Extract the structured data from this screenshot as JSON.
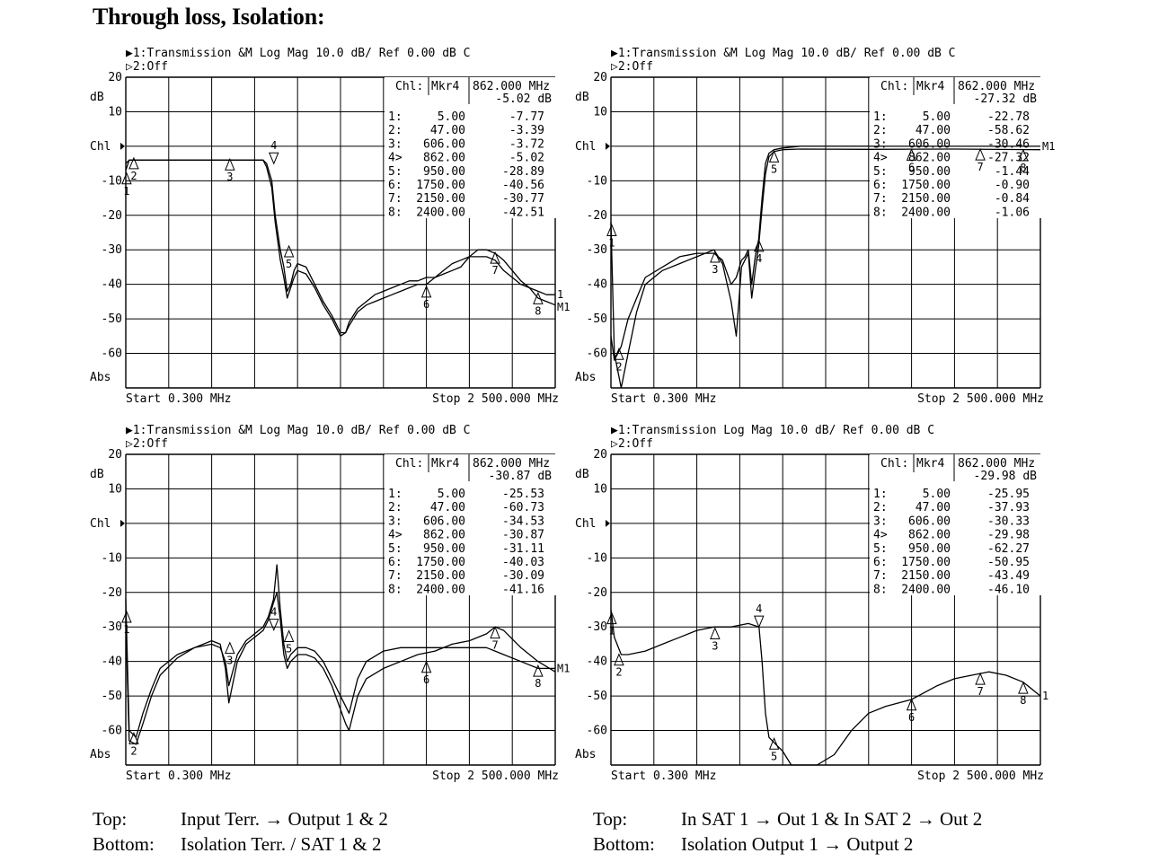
{
  "title": "Through loss, Isolation:",
  "captions": {
    "left": {
      "top_key": "Top:",
      "top_val": "Input Terr. → Output 1 & 2",
      "bottom_key": "Bottom:",
      "bottom_val": "Isolation Terr. / SAT 1 & 2"
    },
    "right": {
      "top_key": "Top:",
      "top_val": "In SAT 1 → Out 1 & In SAT 2 → Out 2",
      "bottom_key": "Bottom:",
      "bottom_val": "Isolation Output 1 → Output 2"
    }
  },
  "chart_data": [
    {
      "type": "line",
      "header_line1": "▶1:Transmission &M Log Mag 10.0 dB/ Ref 0.00 dB C",
      "header_line2": "▷2:Off",
      "ylabel": "dB",
      "abs_label": "Abs",
      "ch_label": "Chl",
      "yticks": [
        "20",
        "10",
        "",
        "-10",
        "-20",
        "-30",
        "-40",
        "-50",
        "-60"
      ],
      "ylim": [
        -70,
        20
      ],
      "xlim": [
        0.3,
        2500
      ],
      "start_label": "Start 0.300 MHz",
      "stop_label": "Stop 2 500.000 MHz",
      "marker_head": {
        "ch": "Chl:",
        "mkr": "Mkr4",
        "freq": "862.000 MHz",
        "val": "-5.02 dB"
      },
      "marker_table": [
        {
          "n": "1:",
          "f": "5.00",
          "v": "-7.77"
        },
        {
          "n": "2:",
          "f": "47.00",
          "v": "-3.39"
        },
        {
          "n": "3:",
          "f": "606.00",
          "v": "-3.72"
        },
        {
          "n": "4>",
          "f": "862.00",
          "v": "-5.02"
        },
        {
          "n": "5:",
          "f": "950.00",
          "v": "-28.89"
        },
        {
          "n": "6:",
          "f": "1750.00",
          "v": "-40.56"
        },
        {
          "n": "7:",
          "f": "2150.00",
          "v": "-30.77"
        },
        {
          "n": "8:",
          "f": "2400.00",
          "v": "-42.51"
        }
      ],
      "end_labels": [
        "1",
        "M1"
      ],
      "series": [
        {
          "x": [
            0.3,
            20,
            100,
            300,
            500,
            700,
            800,
            820,
            850,
            870,
            900,
            920,
            940,
            960,
            980,
            1000,
            1050,
            1100,
            1150,
            1200,
            1250,
            1280,
            1300,
            1350,
            1400,
            1450,
            1500,
            1550,
            1600,
            1650,
            1700,
            1750,
            1800,
            1850,
            1900,
            1950,
            2000,
            2050,
            2100,
            2150,
            2200,
            2250,
            2300,
            2350,
            2400,
            2450,
            2500
          ],
          "y": [
            -5,
            -4,
            -4,
            -4,
            -4,
            -4,
            -4,
            -5,
            -10,
            -20,
            -30,
            -35,
            -42,
            -40,
            -36,
            -34,
            -35,
            -40,
            -45,
            -49,
            -54,
            -54,
            -52,
            -48,
            -46,
            -45,
            -44,
            -43,
            -42,
            -41,
            -40,
            -40,
            -38,
            -36,
            -34,
            -33,
            -32,
            -32,
            -32,
            -33,
            -36,
            -38,
            -40,
            -41,
            -42,
            -43,
            -43
          ]
        },
        {
          "x": [
            0.3,
            20,
            100,
            300,
            500,
            700,
            800,
            820,
            850,
            870,
            900,
            920,
            940,
            960,
            980,
            1000,
            1050,
            1100,
            1150,
            1200,
            1250,
            1280,
            1300,
            1350,
            1400,
            1450,
            1500,
            1550,
            1600,
            1650,
            1700,
            1750,
            1800,
            1850,
            1900,
            1950,
            2000,
            2050,
            2100,
            2150,
            2200,
            2250,
            2300,
            2350,
            2400,
            2450,
            2500
          ],
          "y": [
            -7,
            -4,
            -4,
            -4,
            -4,
            -4,
            -4,
            -6,
            -12,
            -22,
            -33,
            -38,
            -44,
            -41,
            -38,
            -36,
            -37,
            -41,
            -46,
            -50,
            -55,
            -54,
            -51,
            -47,
            -45,
            -43,
            -42,
            -41,
            -40,
            -39,
            -39,
            -38,
            -38,
            -37,
            -36,
            -35,
            -32,
            -30,
            -30,
            -31,
            -33,
            -36,
            -39,
            -41,
            -44,
            -45,
            -46
          ]
        }
      ],
      "markers": [
        {
          "label": "1",
          "f": 5,
          "v": -7.77
        },
        {
          "label": "2",
          "f": 47,
          "v": -3.39
        },
        {
          "label": "3",
          "f": 606,
          "v": -3.72
        },
        {
          "label": "4",
          "f": 862,
          "v": -5.02
        },
        {
          "label": "5",
          "f": 950,
          "v": -28.89
        },
        {
          "label": "6",
          "f": 1750,
          "v": -40.56
        },
        {
          "label": "7",
          "f": 2150,
          "v": -30.77
        },
        {
          "label": "8",
          "f": 2400,
          "v": -42.51
        }
      ]
    },
    {
      "type": "line",
      "header_line1": "▶1:Transmission &M Log Mag 10.0 dB/ Ref 0.00 dB C",
      "header_line2": "▷2:Off",
      "ylabel": "dB",
      "abs_label": "Abs",
      "ch_label": "Chl",
      "yticks": [
        "20",
        "10",
        "",
        "-10",
        "-20",
        "-30",
        "-40",
        "-50",
        "-60"
      ],
      "ylim": [
        -70,
        20
      ],
      "xlim": [
        0.3,
        2500
      ],
      "start_label": "Start 0.300 MHz",
      "stop_label": "Stop 2 500.000 MHz",
      "marker_head": {
        "ch": "Chl:",
        "mkr": "Mkr4",
        "freq": "862.000 MHz",
        "val": "-27.32 dB"
      },
      "marker_table": [
        {
          "n": "1:",
          "f": "5.00",
          "v": "-22.78"
        },
        {
          "n": "2:",
          "f": "47.00",
          "v": "-58.62"
        },
        {
          "n": "3:",
          "f": "606.00",
          "v": "-30.46"
        },
        {
          "n": "4>",
          "f": "862.00",
          "v": "-27.32"
        },
        {
          "n": "5:",
          "f": "950.00",
          "v": "-1.44"
        },
        {
          "n": "6:",
          "f": "1750.00",
          "v": "-0.90"
        },
        {
          "n": "7:",
          "f": "2150.00",
          "v": "-0.84"
        },
        {
          "n": "8:",
          "f": "2400.00",
          "v": "-1.06"
        }
      ],
      "end_labels": [
        "M1"
      ],
      "series": [
        {
          "x": [
            0.3,
            20,
            60,
            100,
            150,
            200,
            300,
            400,
            500,
            600,
            650,
            700,
            730,
            760,
            780,
            800,
            820,
            840,
            860,
            880,
            900,
            920,
            950,
            1000,
            1100,
            1500,
            2000,
            2500
          ],
          "y": [
            -55,
            -62,
            -58,
            -50,
            -44,
            -38,
            -35,
            -32,
            -31,
            -31,
            -33,
            -40,
            -38,
            -33,
            -32,
            -30,
            -40,
            -32,
            -27,
            -15,
            -5,
            -2,
            -1,
            -0.5,
            0,
            0,
            0,
            0
          ]
        },
        {
          "x": [
            0.3,
            20,
            60,
            100,
            150,
            200,
            300,
            400,
            500,
            600,
            650,
            700,
            730,
            760,
            780,
            800,
            820,
            840,
            860,
            880,
            900,
            920,
            950,
            1000,
            1100,
            1500,
            2000,
            2500
          ],
          "y": [
            -22,
            -60,
            -70,
            -60,
            -48,
            -40,
            -36,
            -34,
            -32,
            -30,
            -34,
            -45,
            -55,
            -35,
            -33,
            -31,
            -44,
            -36,
            -29,
            -18,
            -8,
            -3,
            -1.5,
            -1,
            -0.8,
            -0.9,
            -0.8,
            -1
          ]
        }
      ],
      "markers": [
        {
          "label": "1",
          "f": 5,
          "v": -22.78
        },
        {
          "label": "2",
          "f": 47,
          "v": -58.62
        },
        {
          "label": "3",
          "f": 606,
          "v": -30.46
        },
        {
          "label": "4",
          "f": 862,
          "v": -27.32
        },
        {
          "label": "5",
          "f": 950,
          "v": -1.44
        },
        {
          "label": "6",
          "f": 1750,
          "v": -0.9
        },
        {
          "label": "7",
          "f": 2150,
          "v": -0.84
        },
        {
          "label": "8",
          "f": 2400,
          "v": -1.06
        }
      ]
    },
    {
      "type": "line",
      "header_line1": "▶1:Transmission &M Log Mag 10.0 dB/ Ref 0.00 dB C",
      "header_line2": "▷2:Off",
      "ylabel": "dB",
      "abs_label": "Abs",
      "ch_label": "Chl",
      "yticks": [
        "20",
        "10",
        "",
        "-10",
        "-20",
        "-30",
        "-40",
        "-50",
        "-60"
      ],
      "ylim": [
        -70,
        20
      ],
      "xlim": [
        0.3,
        2500
      ],
      "start_label": "Start 0.300 MHz",
      "stop_label": "Stop 2 500.000 MHz",
      "marker_head": {
        "ch": "Chl:",
        "mkr": "Mkr4",
        "freq": "862.000 MHz",
        "val": "-30.87 dB"
      },
      "marker_table": [
        {
          "n": "1:",
          "f": "5.00",
          "v": "-25.53"
        },
        {
          "n": "2:",
          "f": "47.00",
          "v": "-60.73"
        },
        {
          "n": "3:",
          "f": "606.00",
          "v": "-34.53"
        },
        {
          "n": "4>",
          "f": "862.00",
          "v": "-30.87"
        },
        {
          "n": "5:",
          "f": "950.00",
          "v": "-31.11"
        },
        {
          "n": "6:",
          "f": "1750.00",
          "v": "-40.03"
        },
        {
          "n": "7:",
          "f": "2150.00",
          "v": "-30.09"
        },
        {
          "n": "8:",
          "f": "2400.00",
          "v": "-41.16"
        }
      ],
      "end_labels": [
        "M1"
      ],
      "series": [
        {
          "x": [
            0.3,
            20,
            60,
            100,
            150,
            200,
            300,
            400,
            500,
            550,
            580,
            600,
            650,
            700,
            750,
            800,
            830,
            860,
            880,
            900,
            920,
            940,
            960,
            1000,
            1050,
            1100,
            1150,
            1200,
            1280,
            1300,
            1350,
            1400,
            1500,
            1600,
            1700,
            1800,
            1900,
            2000,
            2100,
            2150,
            2200,
            2300,
            2400,
            2500
          ],
          "y": [
            -22,
            -60,
            -62,
            -55,
            -48,
            -42,
            -38,
            -36,
            -35,
            -36,
            -40,
            -47,
            -38,
            -34,
            -32,
            -30,
            -27,
            -22,
            -12,
            -25,
            -35,
            -40,
            -38,
            -36,
            -36,
            -37,
            -40,
            -45,
            -53,
            -55,
            -45,
            -40,
            -37,
            -36,
            -36,
            -36,
            -36,
            -36,
            -36,
            -37,
            -38,
            -40,
            -42,
            -42
          ]
        },
        {
          "x": [
            0.3,
            20,
            60,
            100,
            150,
            200,
            300,
            400,
            500,
            550,
            580,
            600,
            650,
            700,
            750,
            800,
            830,
            860,
            880,
            900,
            920,
            940,
            960,
            1000,
            1050,
            1100,
            1150,
            1200,
            1280,
            1300,
            1350,
            1400,
            1500,
            1600,
            1700,
            1800,
            1900,
            2000,
            2100,
            2150,
            2200,
            2300,
            2400,
            2500
          ],
          "y": [
            -28,
            -63,
            -64,
            -58,
            -50,
            -44,
            -39,
            -36,
            -34,
            -35,
            -42,
            -52,
            -40,
            -35,
            -33,
            -31,
            -28,
            -23,
            -20,
            -28,
            -38,
            -42,
            -40,
            -38,
            -38,
            -39,
            -42,
            -47,
            -58,
            -60,
            -50,
            -45,
            -42,
            -40,
            -38,
            -37,
            -35,
            -34,
            -32,
            -30,
            -31,
            -36,
            -40,
            -43
          ]
        }
      ],
      "markers": [
        {
          "label": "1",
          "f": 5,
          "v": -25.53
        },
        {
          "label": "2",
          "f": 47,
          "v": -60.73
        },
        {
          "label": "3",
          "f": 606,
          "v": -34.53
        },
        {
          "label": "4",
          "f": 862,
          "v": -30.87
        },
        {
          "label": "5",
          "f": 950,
          "v": -31.11
        },
        {
          "label": "6",
          "f": 1750,
          "v": -40.03
        },
        {
          "label": "7",
          "f": 2150,
          "v": -30.09
        },
        {
          "label": "8",
          "f": 2400,
          "v": -41.16
        }
      ]
    },
    {
      "type": "line",
      "header_line1": "▶1:Transmission Log Mag 10.0 dB/ Ref 0.00 dB C",
      "header_line2": "▷2:Off",
      "ylabel": "dB",
      "abs_label": "Abs",
      "ch_label": "Chl",
      "yticks": [
        "20",
        "10",
        "",
        "-10",
        "-20",
        "-30",
        "-40",
        "-50",
        "-60"
      ],
      "ylim": [
        -70,
        20
      ],
      "xlim": [
        0.3,
        2500
      ],
      "start_label": "Start 0.300 MHz",
      "stop_label": "Stop 2 500.000 MHz",
      "marker_head": {
        "ch": "Chl:",
        "mkr": "Mkr4",
        "freq": "862.000 MHz",
        "val": "-29.98 dB"
      },
      "marker_table": [
        {
          "n": "1:",
          "f": "5.00",
          "v": "-25.95"
        },
        {
          "n": "2:",
          "f": "47.00",
          "v": "-37.93"
        },
        {
          "n": "3:",
          "f": "606.00",
          "v": "-30.33"
        },
        {
          "n": "4>",
          "f": "862.00",
          "v": "-29.98"
        },
        {
          "n": "5:",
          "f": "950.00",
          "v": "-62.27"
        },
        {
          "n": "6:",
          "f": "1750.00",
          "v": "-50.95"
        },
        {
          "n": "7:",
          "f": "2150.00",
          "v": "-43.49"
        },
        {
          "n": "8:",
          "f": "2400.00",
          "v": "-46.10"
        }
      ],
      "end_labels": [
        "1"
      ],
      "series": [
        {
          "x": [
            0.3,
            20,
            60,
            100,
            200,
            300,
            400,
            500,
            600,
            700,
            800,
            862,
            880,
            900,
            920,
            940,
            960,
            1000,
            1050,
            1100,
            1200,
            1300,
            1400,
            1500,
            1600,
            1750,
            1900,
            2000,
            2100,
            2200,
            2300,
            2400,
            2500
          ],
          "y": [
            -25,
            -33,
            -38,
            -38,
            -37,
            -35,
            -33,
            -31,
            -30,
            -30,
            -29,
            -30,
            -40,
            -55,
            -62,
            -63,
            -64,
            -66,
            -70,
            -70,
            -70,
            -67,
            -60,
            -55,
            -53,
            -51,
            -47,
            -45,
            -44,
            -43,
            -44,
            -46,
            -50
          ]
        }
      ],
      "markers": [
        {
          "label": "1",
          "f": 5,
          "v": -25.95
        },
        {
          "label": "2",
          "f": 47,
          "v": -37.93
        },
        {
          "label": "3",
          "f": 606,
          "v": -30.33
        },
        {
          "label": "4",
          "f": 862,
          "v": -29.98
        },
        {
          "label": "5",
          "f": 950,
          "v": -62.27
        },
        {
          "label": "6",
          "f": 1750,
          "v": -50.95
        },
        {
          "label": "7",
          "f": 2150,
          "v": -43.49
        },
        {
          "label": "8",
          "f": 2400,
          "v": -46.1
        }
      ]
    }
  ]
}
